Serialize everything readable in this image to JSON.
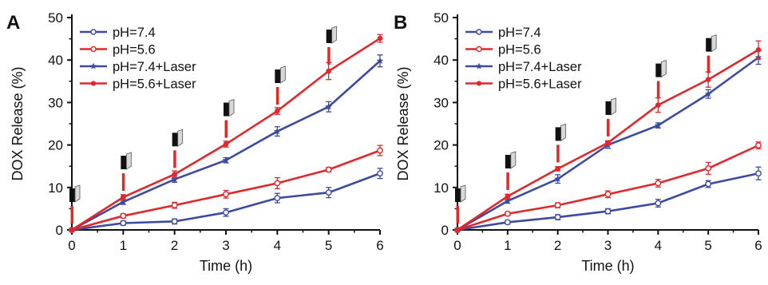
{
  "colors": {
    "blue": "#3c4aa0",
    "red": "#e0282b",
    "axis": "#111111"
  },
  "chart_data": [
    {
      "panel_label": "A",
      "type": "line",
      "xlabel": "Time (h)",
      "ylabel": "DOX Release (%)",
      "xlim": [
        0,
        6
      ],
      "ylim": [
        0,
        50
      ],
      "x_ticks": [
        "0",
        "1",
        "2",
        "3",
        "4",
        "5",
        "6"
      ],
      "y_ticks": [
        "0",
        "10",
        "20",
        "30",
        "40",
        "50"
      ],
      "grid": false,
      "legend_position": "top-left",
      "laser_icon_count": 6,
      "series": [
        {
          "name": "pH=7.4",
          "color": "#3c4aa0",
          "marker": "open-circle",
          "x": [
            0,
            1,
            2,
            3,
            4,
            5,
            6
          ],
          "y": [
            0,
            1.6,
            2.0,
            4.1,
            7.5,
            8.8,
            13.3
          ],
          "err": [
            0.3,
            0.5,
            0.6,
            0.9,
            1.1,
            1.2,
            1.2
          ]
        },
        {
          "name": "pH=5.6",
          "color": "#e0282b",
          "marker": "open-circle",
          "x": [
            0,
            1,
            2,
            3,
            4,
            5,
            6
          ],
          "y": [
            0,
            3.3,
            5.8,
            8.4,
            11.0,
            14.2,
            18.7
          ],
          "err": [
            0.3,
            0.5,
            0.7,
            0.9,
            1.3,
            0.5,
            1.2
          ]
        },
        {
          "name": "pH=7.4+Laser",
          "color": "#3c4aa0",
          "marker": "filled-star",
          "x": [
            0,
            1,
            2,
            3,
            4,
            5,
            6
          ],
          "y": [
            0,
            6.6,
            11.9,
            16.4,
            23.2,
            29.0,
            39.8
          ],
          "err": [
            0.3,
            0.6,
            0.7,
            0.6,
            1.1,
            1.2,
            1.4
          ]
        },
        {
          "name": "pH=5.6+Laser",
          "color": "#e0282b",
          "marker": "filled-circle",
          "x": [
            0,
            1,
            2,
            3,
            4,
            5,
            6
          ],
          "y": [
            0,
            7.7,
            13.1,
            20.2,
            28.0,
            37.4,
            45.1
          ],
          "err": [
            0.3,
            0.6,
            0.8,
            0.7,
            0.8,
            2.0,
            0.9
          ]
        }
      ]
    },
    {
      "panel_label": "B",
      "type": "line",
      "xlabel": "Time (h)",
      "ylabel": "DOX Release (%)",
      "xlim": [
        0,
        6
      ],
      "ylim": [
        0,
        50
      ],
      "x_ticks": [
        "0",
        "1",
        "2",
        "3",
        "4",
        "5",
        "6"
      ],
      "y_ticks": [
        "0",
        "10",
        "20",
        "30",
        "40",
        "50"
      ],
      "grid": false,
      "legend_position": "top-left",
      "laser_icon_count": 6,
      "series": [
        {
          "name": "pH=7.4",
          "color": "#3c4aa0",
          "marker": "open-circle",
          "x": [
            0,
            1,
            2,
            3,
            4,
            5,
            6
          ],
          "y": [
            0,
            1.8,
            3.0,
            4.4,
            6.3,
            10.8,
            13.3
          ],
          "err": [
            0.3,
            0.4,
            0.6,
            0.6,
            0.9,
            0.8,
            1.5
          ]
        },
        {
          "name": "pH=5.6",
          "color": "#e0282b",
          "marker": "open-circle",
          "x": [
            0,
            1,
            2,
            3,
            4,
            5,
            6
          ],
          "y": [
            0,
            3.8,
            5.8,
            8.4,
            11.0,
            14.5,
            19.9
          ],
          "err": [
            0.3,
            0.4,
            0.6,
            0.8,
            0.9,
            1.4,
            0.8
          ]
        },
        {
          "name": "pH=7.4+Laser",
          "color": "#3c4aa0",
          "marker": "filled-star",
          "x": [
            0,
            1,
            2,
            3,
            4,
            5,
            6
          ],
          "y": [
            0,
            6.8,
            12.0,
            20.0,
            24.6,
            32.0,
            40.6
          ],
          "err": [
            0.3,
            0.5,
            1.0,
            0.8,
            0.6,
            1.0,
            1.6
          ]
        },
        {
          "name": "pH=5.6+Laser",
          "color": "#e0282b",
          "marker": "filled-circle",
          "x": [
            0,
            1,
            2,
            3,
            4,
            5,
            6
          ],
          "y": [
            0,
            7.9,
            14.4,
            20.5,
            29.4,
            35.4,
            42.4
          ],
          "err": [
            0.3,
            0.5,
            0.5,
            0.5,
            1.7,
            1.8,
            2.1
          ]
        }
      ]
    }
  ]
}
